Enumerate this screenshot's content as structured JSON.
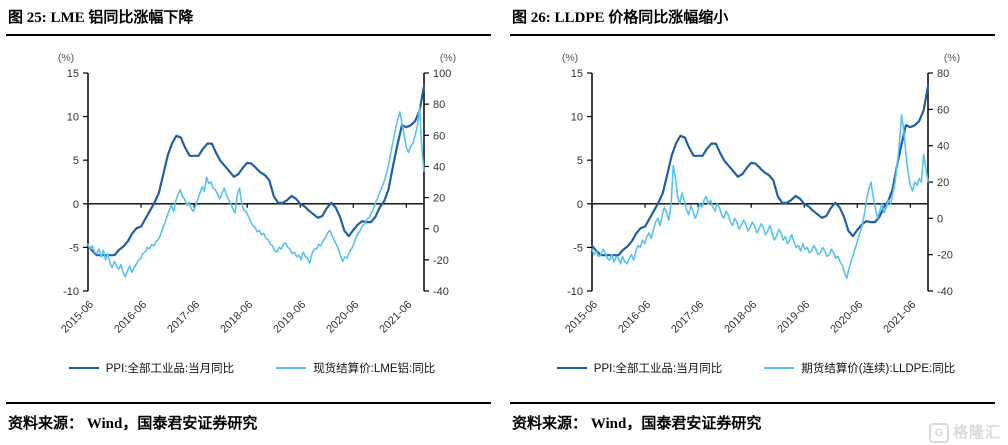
{
  "source_text": "资料来源： Wind，国泰君安证券研究",
  "watermark": {
    "icon_letter": "G",
    "text": "格隆汇",
    "color": "#d9d9d9"
  },
  "colors": {
    "ppi_line": "#1f5fa8",
    "commodity_line": "#57c3f0",
    "axis": "#000000",
    "tick_label": "#333333"
  },
  "chart_data": [
    {
      "type": "line",
      "title": "图 25: LME 铝同比涨幅下降",
      "grid": false,
      "legend_position": "bottom",
      "x_label_ticks": [
        "2015-06",
        "2016-06",
        "2017-06",
        "2018-06",
        "2019-06",
        "2020-06",
        "2021-06"
      ],
      "x_tick_months": [
        0,
        12,
        24,
        36,
        48,
        60,
        72
      ],
      "x_total_months": 76,
      "left_axis": {
        "unit": "(%)",
        "min": -10,
        "max": 15,
        "ticks": [
          15,
          10,
          5,
          0,
          -5,
          -10
        ]
      },
      "right_axis": {
        "unit": "(%)",
        "min": -40,
        "max": 100,
        "ticks": [
          100,
          80,
          60,
          40,
          20,
          0,
          -20,
          -40
        ]
      },
      "series": [
        {
          "name": "PPI:全部工业品:当月同比",
          "axis": "left",
          "color": "#1f5fa8",
          "stroke_width": 2.2,
          "values": [
            -4.8,
            -5.4,
            -5.9,
            -5.9,
            -5.9,
            -5.9,
            -5.9,
            -5.3,
            -4.9,
            -4.3,
            -3.4,
            -2.8,
            -2.6,
            -1.7,
            -0.8,
            0.1,
            1.2,
            3.3,
            5.5,
            6.9,
            7.8,
            7.6,
            6.4,
            5.5,
            5.5,
            5.5,
            6.3,
            6.9,
            6.9,
            5.8,
            4.9,
            4.3,
            3.7,
            3.1,
            3.4,
            4.1,
            4.7,
            4.6,
            4.1,
            3.6,
            3.3,
            2.7,
            0.9,
            0.1,
            0.1,
            0.4,
            0.9,
            0.6,
            0.0,
            -0.3,
            -0.8,
            -1.2,
            -1.6,
            -1.4,
            -0.5,
            0.1,
            -0.4,
            -1.5,
            -3.1,
            -3.7,
            -3.0,
            -2.4,
            -2.0,
            -2.1,
            -2.1,
            -1.5,
            -0.4,
            0.3,
            1.7,
            4.4,
            6.8,
            9.0,
            8.8,
            9.0,
            9.5,
            10.7,
            13.5
          ]
        },
        {
          "name": "现货结算价:LME铝:同比",
          "axis": "right",
          "color": "#57c3f0",
          "stroke_width": 1.6,
          "values": [
            -10,
            -13,
            -11,
            -15,
            -16,
            -13,
            -18,
            -14,
            -20,
            -16,
            -22,
            -25,
            -21,
            -24,
            -26,
            -23,
            -28,
            -31,
            -27,
            -24,
            -28,
            -25,
            -23,
            -20,
            -19,
            -16,
            -15,
            -12,
            -13,
            -10,
            -11,
            -8,
            -7,
            -4,
            0,
            4,
            8,
            12,
            15,
            11,
            18,
            22,
            25,
            21,
            19,
            15,
            17,
            13,
            11,
            15,
            19,
            23,
            27,
            24,
            33,
            29,
            30,
            26,
            25,
            22,
            19,
            23,
            26,
            22,
            19,
            16,
            13,
            10,
            22,
            26,
            16,
            12,
            11,
            8,
            5,
            2,
            1,
            -2,
            -1,
            -4,
            -3,
            -6,
            -7,
            -10,
            -11,
            -14,
            -15,
            -12,
            -13,
            -10,
            -9,
            -12,
            -13,
            -16,
            -15,
            -18,
            -17,
            -20,
            -15,
            -18,
            -19,
            -22,
            -16,
            -13,
            -13,
            -10,
            -11,
            -8,
            -6,
            -3,
            -1,
            -4,
            -7,
            -10,
            -13,
            -17,
            -21,
            -18,
            -19,
            -15,
            -13,
            -10,
            -6,
            -3,
            -1,
            2,
            3,
            6,
            7,
            10,
            13,
            17,
            20,
            24,
            27,
            31,
            36,
            42,
            50,
            57,
            64,
            70,
            75,
            68,
            60,
            52,
            49,
            53,
            55,
            60,
            66,
            78,
            52,
            37
          ]
        }
      ]
    },
    {
      "type": "line",
      "title": "图 26: LLDPE 价格同比涨幅缩小",
      "grid": false,
      "legend_position": "bottom",
      "x_label_ticks": [
        "2015-06",
        "2016-06",
        "2017-06",
        "2018-06",
        "2019-06",
        "2020-06",
        "2021-06"
      ],
      "x_tick_months": [
        0,
        12,
        24,
        36,
        48,
        60,
        72
      ],
      "x_total_months": 76,
      "left_axis": {
        "unit": "(%)",
        "min": -10,
        "max": 15,
        "ticks": [
          15,
          10,
          5,
          0,
          -5,
          -10
        ]
      },
      "right_axis": {
        "unit": "(%)",
        "min": -40,
        "max": 80,
        "ticks": [
          80,
          60,
          40,
          20,
          0,
          -20,
          -40
        ]
      },
      "series": [
        {
          "name": "PPI:全部工业品:当月同比",
          "axis": "left",
          "color": "#1f5fa8",
          "stroke_width": 2.2,
          "values": [
            -4.8,
            -5.4,
            -5.9,
            -5.9,
            -5.9,
            -5.9,
            -5.9,
            -5.3,
            -4.9,
            -4.3,
            -3.4,
            -2.8,
            -2.6,
            -1.7,
            -0.8,
            0.1,
            1.2,
            3.3,
            5.5,
            6.9,
            7.8,
            7.6,
            6.4,
            5.5,
            5.5,
            5.5,
            6.3,
            6.9,
            6.9,
            5.8,
            4.9,
            4.3,
            3.7,
            3.1,
            3.4,
            4.1,
            4.7,
            4.6,
            4.1,
            3.6,
            3.3,
            2.7,
            0.9,
            0.1,
            0.1,
            0.4,
            0.9,
            0.6,
            0.0,
            -0.3,
            -0.8,
            -1.2,
            -1.6,
            -1.4,
            -0.5,
            0.1,
            -0.4,
            -1.5,
            -3.1,
            -3.7,
            -3.0,
            -2.4,
            -2.0,
            -2.1,
            -2.1,
            -1.5,
            -0.4,
            0.3,
            1.7,
            4.4,
            6.8,
            9.0,
            8.8,
            9.0,
            9.5,
            10.7,
            13.5
          ]
        },
        {
          "name": "期货结算价(连续):LLDPE:同比",
          "axis": "right",
          "color": "#57c3f0",
          "stroke_width": 1.6,
          "values": [
            -17,
            -20,
            -18,
            -21,
            -20,
            -17,
            -19,
            -22,
            -23,
            -20,
            -24,
            -21,
            -22,
            -25,
            -21,
            -24,
            -25,
            -22,
            -20,
            -23,
            -18,
            -15,
            -16,
            -12,
            -14,
            -10,
            -8,
            -11,
            -6,
            -2,
            0,
            -4,
            2,
            6,
            3,
            -1,
            8,
            29,
            22,
            12,
            8,
            14,
            10,
            5,
            2,
            7,
            4,
            0,
            3,
            8,
            6,
            10,
            12,
            8,
            10,
            6,
            4,
            8,
            6,
            2,
            0,
            4,
            2,
            -2,
            -4,
            0,
            -2,
            -6,
            -4,
            -1,
            -3,
            -7,
            -5,
            -2,
            -4,
            -8,
            -6,
            -3,
            -5,
            -9,
            -7,
            -4,
            -8,
            -12,
            -10,
            -6,
            -8,
            -12,
            -10,
            -14,
            -12,
            -9,
            -13,
            -16,
            -15,
            -18,
            -14,
            -17,
            -16,
            -19,
            -18,
            -15,
            -17,
            -20,
            -19,
            -16,
            -18,
            -21,
            -20,
            -17,
            -19,
            -22,
            -21,
            -24,
            -26,
            -30,
            -33,
            -28,
            -24,
            -20,
            -16,
            -12,
            -8,
            -4,
            2,
            10,
            16,
            20,
            12,
            6,
            0,
            4,
            8,
            3,
            6,
            10,
            8,
            14,
            20,
            30,
            42,
            57,
            48,
            35,
            25,
            18,
            15,
            20,
            18,
            22,
            20,
            35,
            28,
            20
          ]
        }
      ]
    }
  ]
}
